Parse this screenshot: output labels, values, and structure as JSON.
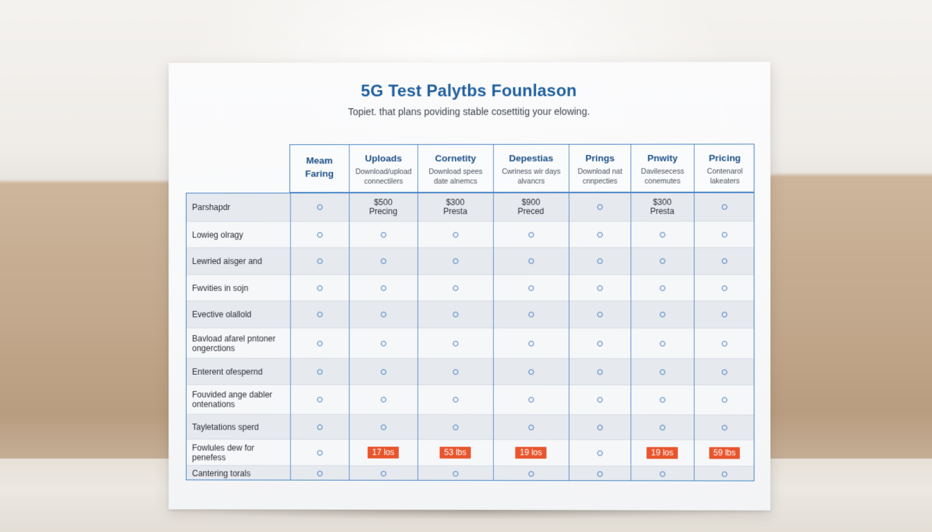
{
  "sheet": {
    "title": "5G Test Palytbs Founlason",
    "subtitle": "Topiet. that plans poviding stable cosettitig your elowing."
  },
  "columns": [
    {
      "title_line1": "Meam",
      "title_line2": "Faring",
      "subtitle": ""
    },
    {
      "title_line1": "Uploads",
      "title_line2": "",
      "subtitle": "Download/upload connectilers"
    },
    {
      "title_line1": "Cornetity",
      "title_line2": "",
      "subtitle": "Download spees date alnemcs"
    },
    {
      "title_line1": "Depestias",
      "title_line2": "",
      "subtitle": "Cwriness wir days alvancrs"
    },
    {
      "title_line1": "Prings",
      "title_line2": "",
      "subtitle": "Download nat cnnpecties"
    },
    {
      "title_line1": "Pnwity",
      "title_line2": "",
      "subtitle": "Davilesecess conemutes"
    },
    {
      "title_line1": "Pricing",
      "title_line2": "",
      "subtitle": "Contenarol lakeaters"
    }
  ],
  "rows": [
    {
      "label": "Parshapdr",
      "cells": [
        "o",
        "$500|Precing",
        "$300|Presta|",
        "$900|Preced",
        "o",
        "$300|Presta|",
        "o"
      ]
    },
    {
      "label": "Lowieg olragy",
      "cells": [
        "o",
        "o",
        "o",
        "o",
        "o",
        "o",
        "o"
      ]
    },
    {
      "label": "Lewried aisger and",
      "cells": [
        "o",
        "o",
        "o",
        "o",
        "o",
        "o",
        "o"
      ]
    },
    {
      "label": "Fwvities in sojn",
      "cells": [
        "o",
        "o",
        "o",
        "o",
        "o",
        "o",
        "o"
      ]
    },
    {
      "label": "Evective olallold",
      "cells": [
        "o",
        "o",
        "o",
        "o",
        "o",
        "o",
        "o"
      ]
    },
    {
      "label": "Bavload afarel pntoner ongerctions",
      "cells": [
        "o",
        "o",
        "o",
        "o",
        "o",
        "o",
        "o"
      ]
    },
    {
      "label": "Enterent ofespernd",
      "cells": [
        "o",
        "o",
        "o",
        "o",
        "o",
        "o",
        "o"
      ]
    },
    {
      "label": "Fouvided ange dabler ontenations",
      "cells": [
        "o",
        "o",
        "o",
        "o",
        "o",
        "o",
        "o"
      ]
    },
    {
      "label": "Tayletations sperd",
      "cells": [
        "o",
        "o",
        "o",
        "o",
        "o",
        "o",
        "o"
      ]
    },
    {
      "label": "Fowlules dew for penefess",
      "cells": [
        "o",
        "badge:17 los",
        "badge:53 lbs",
        "badge:19 los",
        "o",
        "badge:19 los",
        "badge:59 lbs"
      ]
    },
    {
      "label": "Cantering torals",
      "cells": [
        "o",
        "o",
        "o",
        "o",
        "o",
        "o",
        "o"
      ]
    }
  ],
  "colors": {
    "title": "#1f5f9e",
    "grid": "#3f7fc4",
    "dot": "#3a78c2",
    "badge": "#e8552d"
  }
}
